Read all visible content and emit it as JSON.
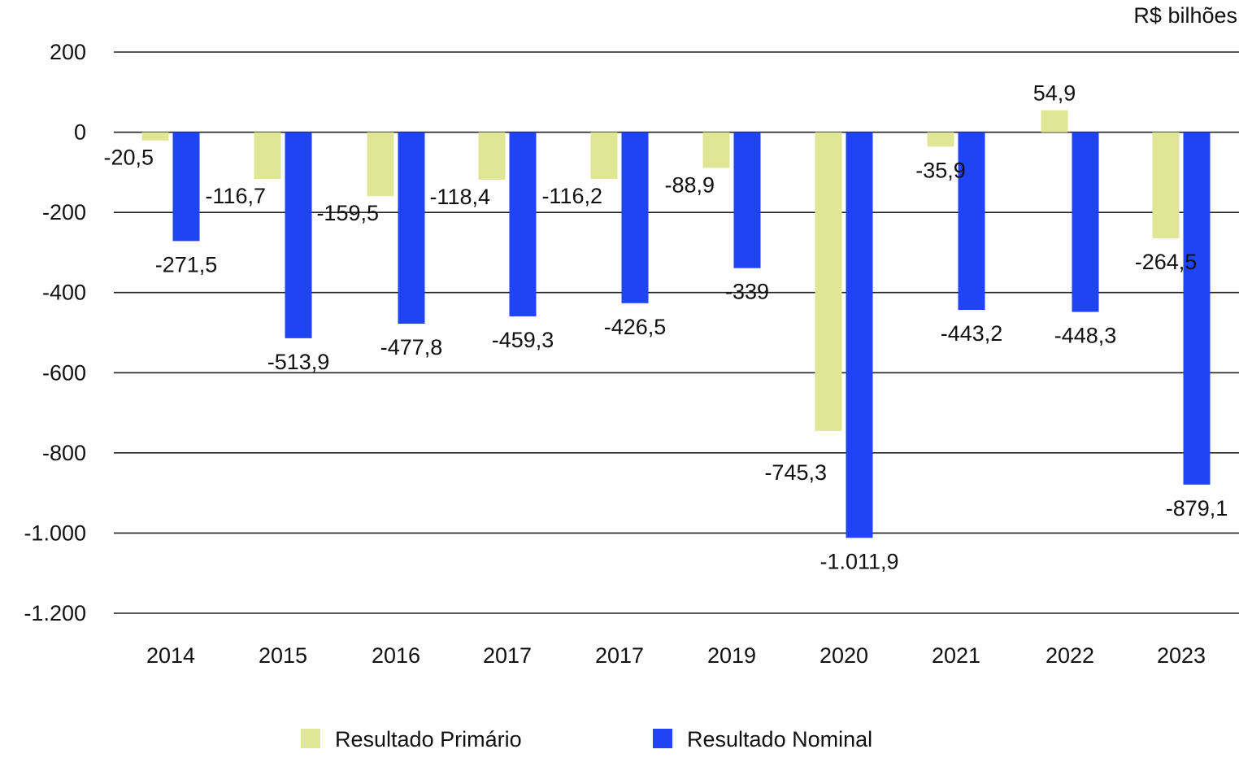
{
  "chart_data": {
    "type": "bar",
    "unit_label": "R$ bilhões",
    "categories": [
      "2014",
      "2015",
      "2016",
      "2017",
      "2017",
      "2019",
      "2020",
      "2021",
      "2022",
      "2023"
    ],
    "series": [
      {
        "name": "Resultado Primário",
        "color": "#dfe696",
        "values": [
          -20.5,
          -116.7,
          -159.5,
          -118.4,
          -116.2,
          -88.9,
          -745.3,
          -35.9,
          54.9,
          -264.5
        ],
        "labels": [
          "-20,5",
          "-116,7",
          "-159,5",
          "-118,4",
          "-116,2",
          "-88,9",
          "-745,3",
          "-35,9",
          "54,9",
          "-264,5"
        ]
      },
      {
        "name": "Resultado Nominal",
        "color": "#1e44f5",
        "values": [
          -271.5,
          -513.9,
          -477.8,
          -459.3,
          -426.5,
          -339,
          -1011.9,
          -443.2,
          -448.3,
          -879.1
        ],
        "labels": [
          "-271,5",
          "-513,9",
          "-477,8",
          "-459,3",
          "-426,5",
          "-339",
          "-1.011,9",
          "-443,2",
          "-448,3",
          "-879,1"
        ]
      }
    ],
    "y_ticks": [
      200,
      0,
      -200,
      -400,
      -600,
      -800,
      -1000,
      -1200
    ],
    "y_tick_labels": [
      "200",
      "0",
      "-200",
      "-400",
      "-600",
      "-800",
      "-1.000",
      "-1.200"
    ],
    "ylim": [
      -1200,
      200
    ],
    "grid": true,
    "legend_position": "bottom-center"
  }
}
